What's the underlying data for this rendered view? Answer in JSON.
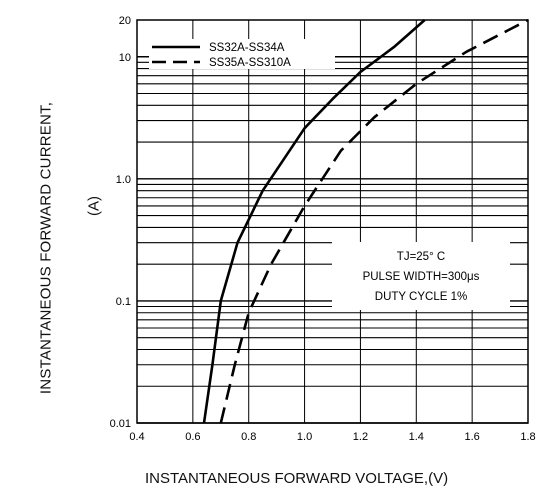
{
  "chart_data": {
    "type": "line",
    "xlabel": "INSTANTANEOUS FORWARD VOLTAGE,(V)",
    "ylabel": "INSTANTANEOUS FORWARD CURRENT,",
    "ylabel_unit": "(A)",
    "xlim": [
      0.4,
      1.8
    ],
    "ylim": [
      0.01,
      20
    ],
    "yscale": "log",
    "grid": true,
    "x_ticks": [
      "0.4",
      "0.6",
      "0.8",
      "1.0",
      "1.2",
      "1.4",
      "1.6",
      "1.8"
    ],
    "y_ticks": [
      "0.01",
      "0.1",
      "1.0",
      "10",
      "20"
    ],
    "legend_position": "top-left",
    "series": [
      {
        "name": "SS32A-SS34A",
        "style": "solid",
        "x": [
          0.64,
          0.67,
          0.7,
          0.76,
          0.85,
          1.0,
          1.1,
          1.2,
          1.32,
          1.43
        ],
        "y": [
          0.01,
          0.03,
          0.1,
          0.3,
          0.8,
          2.6,
          4.5,
          7.5,
          12,
          20
        ]
      },
      {
        "name": "SS35A-SS310A",
        "style": "dashed",
        "x": [
          0.7,
          0.75,
          0.8,
          0.88,
          1.0,
          1.13,
          1.25,
          1.4,
          1.58,
          1.8
        ],
        "y": [
          0.01,
          0.03,
          0.08,
          0.2,
          0.6,
          1.7,
          3.2,
          6,
          11,
          20
        ]
      }
    ],
    "annotation": {
      "lines": [
        "TJ=25° C",
        "PULSE WIDTH=300μs",
        "DUTY CYCLE 1%"
      ],
      "position": "right-middle"
    }
  }
}
